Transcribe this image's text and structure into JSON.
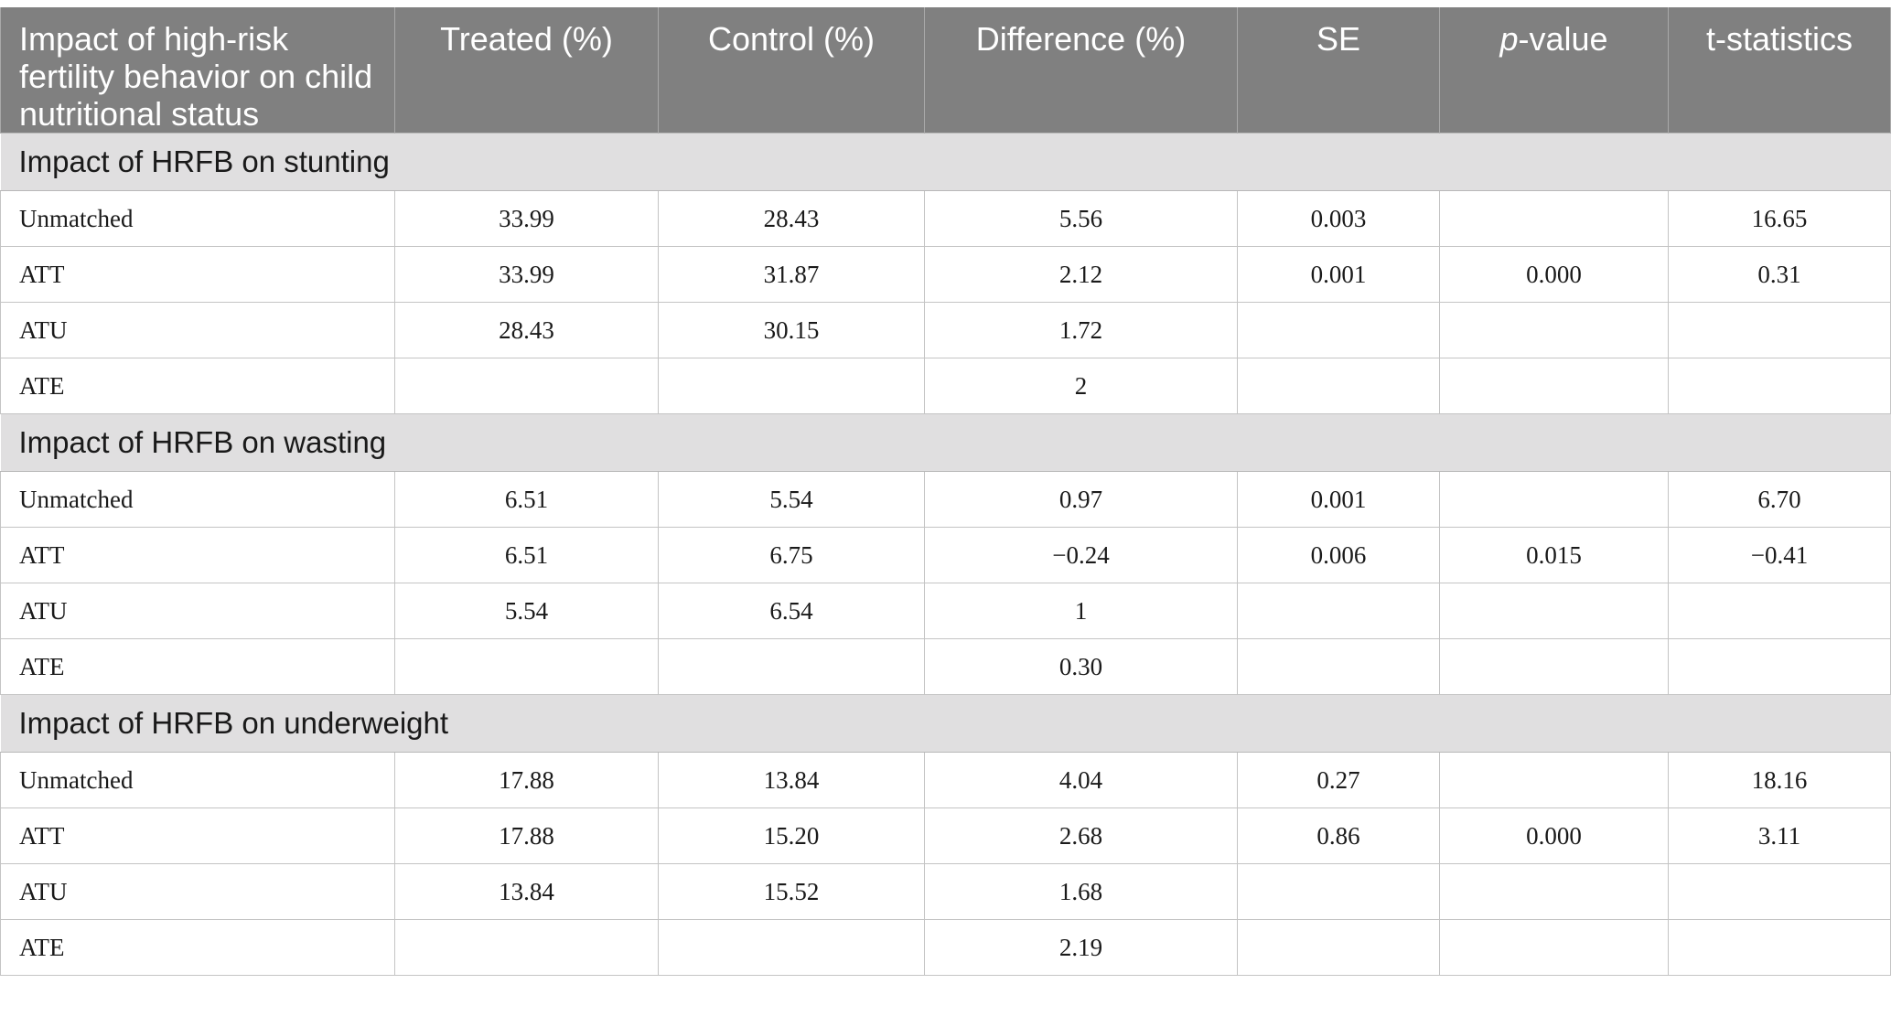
{
  "header": {
    "col0": "Impact of high-risk fertility behavior on child nutritional status",
    "col1": "Treated (%)",
    "col2": "Control (%)",
    "col3": "Difference (%)",
    "col4": "SE",
    "col5_italic": "p",
    "col5_rest": "-value",
    "col6": "t-statistics"
  },
  "sections": [
    {
      "title": "Impact of HRFB on stunting",
      "rows": [
        {
          "label": "Unmatched",
          "treated": "33.99",
          "control": "28.43",
          "difference": "5.56",
          "se": "0.003",
          "pvalue": "",
          "tstat": "16.65"
        },
        {
          "label": "ATT",
          "treated": "33.99",
          "control": "31.87",
          "difference": "2.12",
          "se": "0.001",
          "pvalue": "0.000",
          "tstat": "0.31"
        },
        {
          "label": "ATU",
          "treated": "28.43",
          "control": "30.15",
          "difference": "1.72",
          "se": "",
          "pvalue": "",
          "tstat": ""
        },
        {
          "label": "ATE",
          "treated": "",
          "control": "",
          "difference": "2",
          "se": "",
          "pvalue": "",
          "tstat": ""
        }
      ]
    },
    {
      "title": "Impact of HRFB on wasting",
      "rows": [
        {
          "label": "Unmatched",
          "treated": "6.51",
          "control": "5.54",
          "difference": "0.97",
          "se": "0.001",
          "pvalue": "",
          "tstat": "6.70"
        },
        {
          "label": "ATT",
          "treated": "6.51",
          "control": "6.75",
          "difference": "−0.24",
          "se": "0.006",
          "pvalue": "0.015",
          "tstat": "−0.41"
        },
        {
          "label": "ATU",
          "treated": "5.54",
          "control": "6.54",
          "difference": "1",
          "se": "",
          "pvalue": "",
          "tstat": ""
        },
        {
          "label": "ATE",
          "treated": "",
          "control": "",
          "difference": "0.30",
          "se": "",
          "pvalue": "",
          "tstat": ""
        }
      ]
    },
    {
      "title": "Impact of HRFB on underweight",
      "rows": [
        {
          "label": "Unmatched",
          "treated": "17.88",
          "control": "13.84",
          "difference": "4.04",
          "se": "0.27",
          "pvalue": "",
          "tstat": "18.16"
        },
        {
          "label": "ATT",
          "treated": "17.88",
          "control": "15.20",
          "difference": "2.68",
          "se": "0.86",
          "pvalue": "0.000",
          "tstat": "3.11"
        },
        {
          "label": "ATU",
          "treated": "13.84",
          "control": "15.52",
          "difference": "1.68",
          "se": "",
          "pvalue": "",
          "tstat": ""
        },
        {
          "label": "ATE",
          "treated": "",
          "control": "",
          "difference": "2.19",
          "se": "",
          "pvalue": "",
          "tstat": ""
        }
      ]
    }
  ]
}
